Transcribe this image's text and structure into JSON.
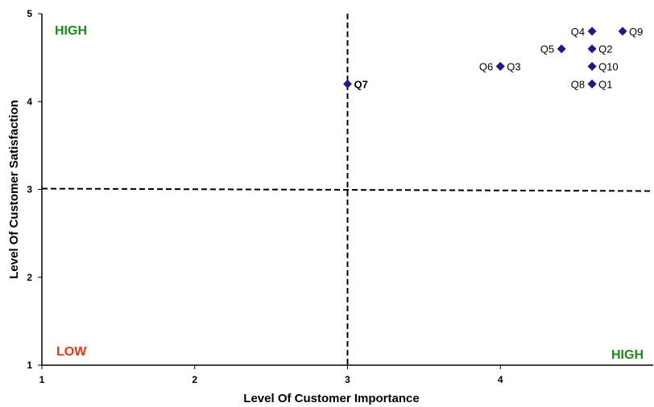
{
  "chart_data": {
    "type": "scatter",
    "title": "",
    "xlabel": "Level Of Customer Importance",
    "ylabel": "Level Of Customer Satisfaction",
    "xlim": [
      1,
      5
    ],
    "ylim": [
      1,
      5
    ],
    "x_ticks": [
      "1",
      "2",
      "3",
      "4"
    ],
    "y_ticks": [
      "1",
      "2",
      "3",
      "4",
      "5"
    ],
    "grid": false,
    "reference_lines": {
      "x": 3,
      "y": 3
    },
    "marker_color": "#1a1a8c",
    "points": [
      {
        "label": "Q1",
        "x": 4.6,
        "y": 4.2,
        "label_side": "right"
      },
      {
        "label": "Q2",
        "x": 4.6,
        "y": 4.6,
        "label_side": "right"
      },
      {
        "label": "Q3",
        "x": 4.0,
        "y": 4.4,
        "label_side": "right"
      },
      {
        "label": "Q4",
        "x": 4.6,
        "y": 4.8,
        "label_side": "left"
      },
      {
        "label": "Q5",
        "x": 4.4,
        "y": 4.6,
        "label_side": "left"
      },
      {
        "label": "Q6",
        "x": 4.0,
        "y": 4.4,
        "label_side": "left"
      },
      {
        "label": "Q7",
        "x": 3.0,
        "y": 4.2,
        "label_side": "right",
        "bold": true
      },
      {
        "label": "Q8",
        "x": 4.6,
        "y": 4.2,
        "label_side": "left"
      },
      {
        "label": "Q9",
        "x": 4.8,
        "y": 4.8,
        "label_side": "right"
      },
      {
        "label": "Q10",
        "x": 4.6,
        "y": 4.4,
        "label_side": "right"
      }
    ],
    "quadrant_labels": [
      {
        "text": "HIGH",
        "position": "top-left",
        "color": "#1a8a1a"
      },
      {
        "text": "LOW",
        "position": "bottom-left",
        "color": "#ee3311"
      },
      {
        "text": "HIGH",
        "position": "bottom-right",
        "color": "#1a8a1a"
      }
    ]
  }
}
